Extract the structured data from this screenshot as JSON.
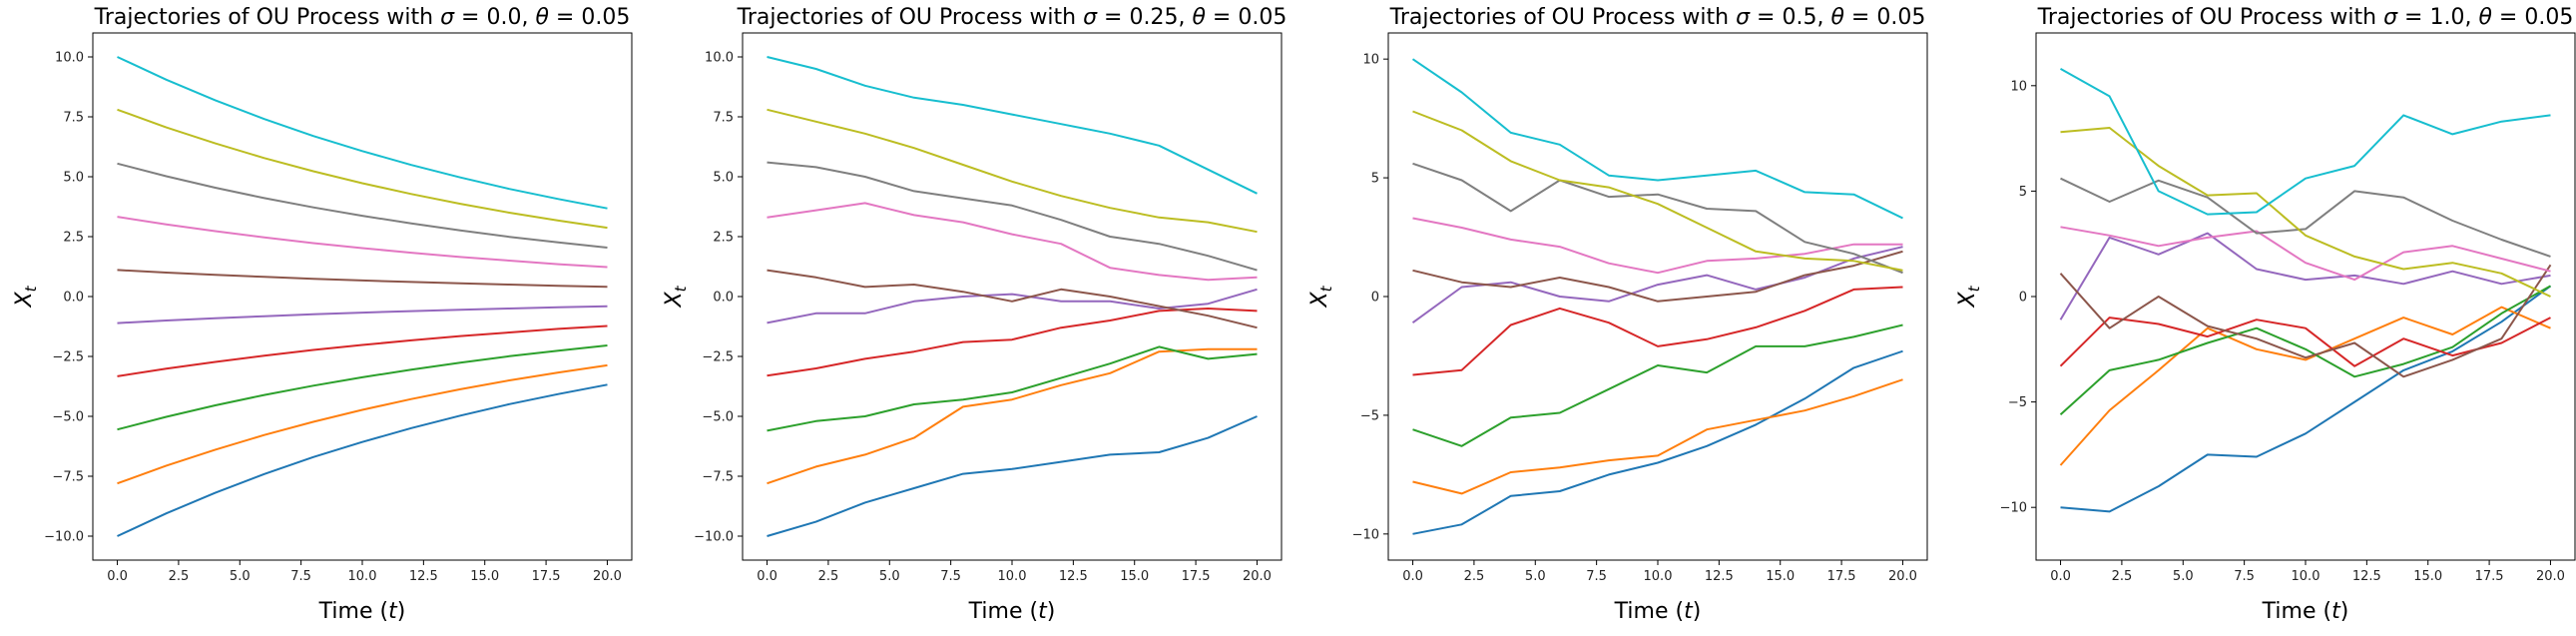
{
  "figure": {
    "background": "#ffffff"
  },
  "series_colors": [
    "#1f77b4",
    "#ff7f0e",
    "#2ca02c",
    "#d62728",
    "#9467bd",
    "#8c564b",
    "#e377c2",
    "#7f7f7f",
    "#bcbd22",
    "#17becf"
  ],
  "chart_data": [
    {
      "type": "line",
      "title": "Trajectories of OU Process with σ = 0.0, θ = 0.05",
      "title_parts": {
        "prefix": "Trajectories of OU Process with ",
        "sigma_sym": "σ",
        "sigma_val": " = 0.0, ",
        "theta_sym": "θ",
        "theta_val": " = 0.05"
      },
      "xlabel": "Time (t)",
      "xlabel_parts": {
        "prefix": "Time (",
        "var": "t",
        "suffix": ")"
      },
      "ylabel_parts": {
        "var": "X",
        "sub": "t"
      },
      "xlim": [
        -1,
        21
      ],
      "ylim": [
        -11,
        11
      ],
      "xticks": [
        0,
        2.5,
        5,
        7.5,
        10,
        12.5,
        15,
        17.5,
        20
      ],
      "xtick_labels": [
        "0.0",
        "2.5",
        "5.0",
        "7.5",
        "10.0",
        "12.5",
        "15.0",
        "17.5",
        "20.0"
      ],
      "yticks": [
        -10,
        -7.5,
        -5,
        -2.5,
        0,
        2.5,
        5,
        7.5,
        10
      ],
      "ytick_labels": [
        "−10.0",
        "−7.5",
        "−5.0",
        "−2.5",
        "0.0",
        "2.5",
        "5.0",
        "7.5",
        "10.0"
      ],
      "x": [
        0,
        2,
        4,
        6,
        8,
        10,
        12,
        14,
        16,
        18,
        20
      ],
      "series": [
        {
          "values": [
            -10,
            -9.05,
            -8.19,
            -7.41,
            -6.7,
            -6.07,
            -5.49,
            -4.97,
            -4.49,
            -4.07,
            -3.68
          ]
        },
        {
          "values": [
            -7.8,
            -7.06,
            -6.39,
            -5.78,
            -5.23,
            -4.73,
            -4.28,
            -3.87,
            -3.5,
            -3.17,
            -2.87
          ]
        },
        {
          "values": [
            -5.55,
            -5.02,
            -4.54,
            -4.11,
            -3.72,
            -3.37,
            -3.05,
            -2.76,
            -2.49,
            -2.26,
            -2.04
          ]
        },
        {
          "values": [
            -3.33,
            -3.01,
            -2.73,
            -2.47,
            -2.23,
            -2.02,
            -1.83,
            -1.65,
            -1.5,
            -1.35,
            -1.23
          ]
        },
        {
          "values": [
            -1.11,
            -1.0,
            -0.91,
            -0.82,
            -0.74,
            -0.67,
            -0.61,
            -0.55,
            -0.5,
            -0.45,
            -0.41
          ]
        },
        {
          "values": [
            1.11,
            1.0,
            0.91,
            0.82,
            0.74,
            0.67,
            0.61,
            0.55,
            0.5,
            0.45,
            0.41
          ]
        },
        {
          "values": [
            3.33,
            3.01,
            2.73,
            2.47,
            2.23,
            2.02,
            1.83,
            1.65,
            1.5,
            1.35,
            1.23
          ]
        },
        {
          "values": [
            5.55,
            5.02,
            4.54,
            4.11,
            3.72,
            3.37,
            3.05,
            2.76,
            2.49,
            2.26,
            2.04
          ]
        },
        {
          "values": [
            7.8,
            7.06,
            6.39,
            5.78,
            5.23,
            4.73,
            4.28,
            3.87,
            3.5,
            3.17,
            2.87
          ]
        },
        {
          "values": [
            10,
            9.05,
            8.19,
            7.41,
            6.7,
            6.07,
            5.49,
            4.97,
            4.49,
            4.07,
            3.68
          ]
        }
      ]
    },
    {
      "type": "line",
      "title": "Trajectories of OU Process with σ = 0.25, θ = 0.05",
      "title_parts": {
        "prefix": "Trajectories of OU Process with ",
        "sigma_sym": "σ",
        "sigma_val": " = 0.25, ",
        "theta_sym": "θ",
        "theta_val": " = 0.05"
      },
      "xlabel": "Time (t)",
      "xlabel_parts": {
        "prefix": "Time (",
        "var": "t",
        "suffix": ")"
      },
      "ylabel_parts": {
        "var": "X",
        "sub": "t"
      },
      "xlim": [
        -1,
        21
      ],
      "ylim": [
        -11,
        11
      ],
      "xticks": [
        0,
        2.5,
        5,
        7.5,
        10,
        12.5,
        15,
        17.5,
        20
      ],
      "xtick_labels": [
        "0.0",
        "2.5",
        "5.0",
        "7.5",
        "10.0",
        "12.5",
        "15.0",
        "17.5",
        "20.0"
      ],
      "yticks": [
        -10,
        -7.5,
        -5,
        -2.5,
        0,
        2.5,
        5,
        7.5,
        10
      ],
      "ytick_labels": [
        "−10.0",
        "−7.5",
        "−5.0",
        "−2.5",
        "0.0",
        "2.5",
        "5.0",
        "7.5",
        "10.0"
      ],
      "x": [
        0,
        2,
        4,
        6,
        8,
        10,
        12,
        14,
        16,
        18,
        20
      ],
      "series": [
        {
          "values": [
            -10,
            -9.4,
            -8.6,
            -8.0,
            -7.4,
            -7.2,
            -6.9,
            -6.6,
            -6.5,
            -5.9,
            -5.0
          ]
        },
        {
          "values": [
            -7.8,
            -7.1,
            -6.6,
            -5.9,
            -4.6,
            -4.3,
            -3.7,
            -3.2,
            -2.3,
            -2.2,
            -2.2
          ]
        },
        {
          "values": [
            -5.6,
            -5.2,
            -5.0,
            -4.5,
            -4.3,
            -4.0,
            -3.4,
            -2.8,
            -2.1,
            -2.6,
            -2.4
          ]
        },
        {
          "values": [
            -3.3,
            -3.0,
            -2.6,
            -2.3,
            -1.9,
            -1.8,
            -1.3,
            -1.0,
            -0.6,
            -0.5,
            -0.6
          ]
        },
        {
          "values": [
            -1.1,
            -0.7,
            -0.7,
            -0.2,
            0.0,
            0.1,
            -0.2,
            -0.2,
            -0.5,
            -0.3,
            0.3
          ]
        },
        {
          "values": [
            1.1,
            0.8,
            0.4,
            0.5,
            0.2,
            -0.2,
            0.3,
            0.0,
            -0.4,
            -0.8,
            -1.3
          ]
        },
        {
          "values": [
            3.3,
            3.6,
            3.9,
            3.4,
            3.1,
            2.6,
            2.2,
            1.2,
            0.9,
            0.7,
            0.8
          ]
        },
        {
          "values": [
            5.6,
            5.4,
            5.0,
            4.4,
            4.1,
            3.8,
            3.2,
            2.5,
            2.2,
            1.7,
            1.1
          ]
        },
        {
          "values": [
            7.8,
            7.3,
            6.8,
            6.2,
            5.5,
            4.8,
            4.2,
            3.7,
            3.3,
            3.1,
            2.7
          ]
        },
        {
          "values": [
            10,
            9.5,
            8.8,
            8.3,
            8.0,
            7.6,
            7.2,
            6.8,
            6.3,
            5.3,
            4.3
          ]
        }
      ]
    },
    {
      "type": "line",
      "title": "Trajectories of OU Process with σ = 0.5, θ = 0.05",
      "title_parts": {
        "prefix": "Trajectories of OU Process with ",
        "sigma_sym": "σ",
        "sigma_val": " = 0.5, ",
        "theta_sym": "θ",
        "theta_val": " = 0.05"
      },
      "xlabel": "Time (t)",
      "xlabel_parts": {
        "prefix": "Time (",
        "var": "t",
        "suffix": ")"
      },
      "ylabel_parts": {
        "var": "X",
        "sub": "t"
      },
      "xlim": [
        -1,
        21
      ],
      "ylim": [
        -11.1,
        11.1
      ],
      "xticks": [
        0,
        2.5,
        5,
        7.5,
        10,
        12.5,
        15,
        17.5,
        20
      ],
      "xtick_labels": [
        "0.0",
        "2.5",
        "5.0",
        "7.5",
        "10.0",
        "12.5",
        "15.0",
        "17.5",
        "20.0"
      ],
      "yticks": [
        -10,
        -5,
        0,
        5,
        10
      ],
      "ytick_labels": [
        "−10",
        "−5",
        "0",
        "5",
        "10"
      ],
      "x": [
        0,
        2,
        4,
        6,
        8,
        10,
        12,
        14,
        16,
        18,
        20
      ],
      "series": [
        {
          "values": [
            -10,
            -9.6,
            -8.4,
            -8.2,
            -7.5,
            -7.0,
            -6.3,
            -5.4,
            -4.3,
            -3.0,
            -2.3
          ]
        },
        {
          "values": [
            -7.8,
            -8.3,
            -7.4,
            -7.2,
            -6.9,
            -6.7,
            -5.6,
            -5.2,
            -4.8,
            -4.2,
            -3.5
          ]
        },
        {
          "values": [
            -5.6,
            -6.3,
            -5.1,
            -4.9,
            -3.9,
            -2.9,
            -3.2,
            -2.1,
            -2.1,
            -1.7,
            -1.2
          ]
        },
        {
          "values": [
            -3.3,
            -3.1,
            -1.2,
            -0.5,
            -1.1,
            -2.1,
            -1.8,
            -1.3,
            -0.6,
            0.3,
            0.4
          ]
        },
        {
          "values": [
            -1.1,
            0.4,
            0.6,
            0.0,
            -0.2,
            0.5,
            0.9,
            0.3,
            0.8,
            1.6,
            2.1
          ]
        },
        {
          "values": [
            1.1,
            0.6,
            0.4,
            0.8,
            0.4,
            -0.2,
            0.0,
            0.2,
            0.9,
            1.3,
            1.9
          ]
        },
        {
          "values": [
            3.3,
            2.9,
            2.4,
            2.1,
            1.4,
            1.0,
            1.5,
            1.6,
            1.8,
            2.2,
            2.2
          ]
        },
        {
          "values": [
            5.6,
            4.9,
            3.6,
            4.9,
            4.2,
            4.3,
            3.7,
            3.6,
            2.3,
            1.8,
            1.0
          ]
        },
        {
          "values": [
            7.8,
            7.0,
            5.7,
            4.9,
            4.6,
            3.9,
            2.9,
            1.9,
            1.6,
            1.5,
            1.1
          ]
        },
        {
          "values": [
            10,
            8.6,
            6.9,
            6.4,
            5.1,
            4.9,
            5.1,
            5.3,
            4.4,
            4.3,
            3.3
          ]
        }
      ]
    },
    {
      "type": "line",
      "title": "Trajectories of OU Process with σ = 1.0, θ = 0.05",
      "title_parts": {
        "prefix": "Trajectories of OU Process with ",
        "sigma_sym": "σ",
        "sigma_val": " = 1.0, ",
        "theta_sym": "θ",
        "theta_val": " = 0.05"
      },
      "xlabel": "Time (t)",
      "xlabel_parts": {
        "prefix": "Time (",
        "var": "t",
        "suffix": ")"
      },
      "ylabel_parts": {
        "var": "X",
        "sub": "t"
      },
      "xlim": [
        -1,
        21
      ],
      "ylim": [
        -12.5,
        12.5
      ],
      "xticks": [
        0,
        2.5,
        5,
        7.5,
        10,
        12.5,
        15,
        17.5,
        20
      ],
      "xtick_labels": [
        "0.0",
        "2.5",
        "5.0",
        "7.5",
        "10.0",
        "12.5",
        "15.0",
        "17.5",
        "20.0"
      ],
      "yticks": [
        -10,
        -5,
        0,
        5,
        10
      ],
      "ytick_labels": [
        "−10",
        "−5",
        "0",
        "5",
        "10"
      ],
      "x": [
        0,
        2,
        4,
        6,
        8,
        10,
        12,
        14,
        16,
        18,
        20
      ],
      "series": [
        {
          "values": [
            -10,
            -10.2,
            -9.0,
            -7.5,
            -7.6,
            -6.5,
            -5.0,
            -3.5,
            -2.6,
            -1.2,
            0.5
          ]
        },
        {
          "values": [
            -8.0,
            -5.4,
            -3.5,
            -1.5,
            -2.5,
            -3.0,
            -2.0,
            -1.0,
            -1.8,
            -0.5,
            -1.5
          ]
        },
        {
          "values": [
            -5.6,
            -3.5,
            -3.0,
            -2.2,
            -1.5,
            -2.5,
            -3.8,
            -3.2,
            -2.4,
            -0.8,
            0.5
          ]
        },
        {
          "values": [
            -3.3,
            -1.0,
            -1.3,
            -1.9,
            -1.1,
            -1.5,
            -3.3,
            -2.0,
            -2.8,
            -2.2,
            -1.0
          ]
        },
        {
          "values": [
            -1.1,
            2.8,
            2.0,
            3.0,
            1.3,
            0.8,
            1.0,
            0.6,
            1.2,
            0.6,
            1.0
          ]
        },
        {
          "values": [
            1.1,
            -1.5,
            0.0,
            -1.4,
            -2.0,
            -2.9,
            -2.2,
            -3.8,
            -3.0,
            -2.0,
            1.5
          ]
        },
        {
          "values": [
            3.3,
            2.9,
            2.4,
            2.8,
            3.1,
            1.6,
            0.8,
            2.1,
            2.4,
            1.8,
            1.2
          ]
        },
        {
          "values": [
            5.6,
            4.5,
            5.5,
            4.7,
            3.0,
            3.2,
            5.0,
            4.7,
            3.6,
            2.7,
            1.9
          ]
        },
        {
          "values": [
            7.8,
            8.0,
            6.2,
            4.8,
            4.9,
            2.9,
            1.9,
            1.3,
            1.6,
            1.1,
            0.0
          ]
        },
        {
          "values": [
            10.8,
            9.5,
            5.0,
            3.9,
            4.0,
            5.6,
            6.2,
            8.6,
            7.7,
            8.3,
            8.6
          ]
        }
      ]
    }
  ]
}
